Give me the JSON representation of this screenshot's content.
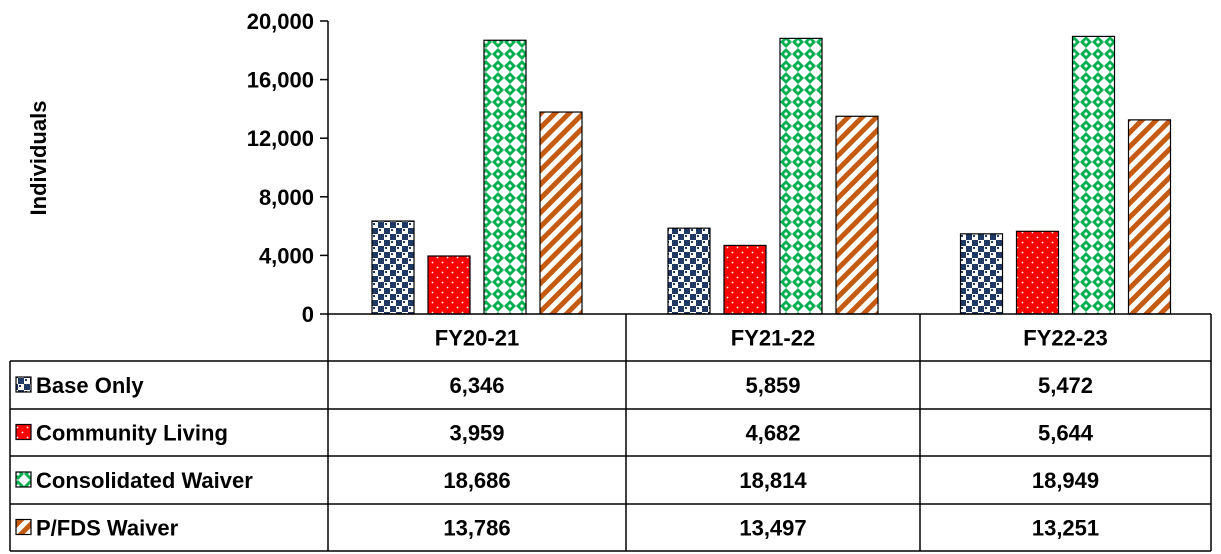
{
  "chart_data": {
    "type": "bar",
    "ylabel": "Individuals",
    "ylim": [
      0,
      20000
    ],
    "yticks": [
      "0",
      "4,000",
      "8,000",
      "12,000",
      "16,000",
      "20,000"
    ],
    "categories": [
      "FY20-21",
      "FY21-22",
      "FY22-23"
    ],
    "series": [
      {
        "name": "Base Only",
        "values": [
          6346,
          5859,
          5472
        ],
        "labels": [
          "6,346",
          "5,859",
          "5,472"
        ],
        "color": "#1f3864",
        "pattern": "checker-navy"
      },
      {
        "name": "Community Living",
        "values": [
          3959,
          4682,
          5644
        ],
        "labels": [
          "3,959",
          "4,682",
          "5,644"
        ],
        "color": "#ff0000",
        "pattern": "red-dots"
      },
      {
        "name": "Consolidated Waiver",
        "values": [
          18686,
          18814,
          18949
        ],
        "labels": [
          "18,686",
          "18,814",
          "18,949"
        ],
        "color": "#00b050",
        "pattern": "green-diamonds"
      },
      {
        "name": "P/FDS Waiver",
        "values": [
          13786,
          13497,
          13251
        ],
        "labels": [
          "13,786",
          "13,497",
          "13,251"
        ],
        "color": "#c55a11",
        "pattern": "orange-diagonal"
      }
    ],
    "grid": false,
    "legend": "data-table"
  }
}
